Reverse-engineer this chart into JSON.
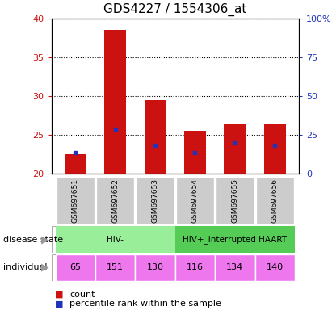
{
  "title": "GDS4227 / 1554306_at",
  "samples": [
    "GSM697651",
    "GSM697652",
    "GSM697653",
    "GSM697654",
    "GSM697655",
    "GSM697656"
  ],
  "bar_bottoms": [
    20,
    20,
    20,
    20,
    20,
    20
  ],
  "bar_heights": [
    2.5,
    18.5,
    9.5,
    5.5,
    6.5,
    6.5
  ],
  "blue_marker_values": [
    22.7,
    25.7,
    23.7,
    22.7,
    24.0,
    23.7
  ],
  "ylim_left": [
    20,
    40
  ],
  "ylim_right": [
    0,
    100
  ],
  "yticks_left": [
    20,
    25,
    30,
    35,
    40
  ],
  "yticks_right": [
    0,
    25,
    50,
    75,
    100
  ],
  "ytick_labels_right": [
    "0",
    "25",
    "50",
    "75",
    "100%"
  ],
  "bar_color": "#cc1111",
  "blue_color": "#2233bb",
  "bar_width": 0.55,
  "disease_state_groups": [
    {
      "label": "HIV-",
      "cols": [
        0,
        1,
        2
      ],
      "color": "#99ee99"
    },
    {
      "label": "HIV+_interrupted HAART",
      "cols": [
        3,
        4,
        5
      ],
      "color": "#55cc55"
    }
  ],
  "individual_labels": [
    "65",
    "151",
    "130",
    "116",
    "134",
    "140"
  ],
  "individual_color": "#ee77ee",
  "row_label_disease": "disease state",
  "row_label_individual": "individual",
  "legend_count_label": "count",
  "legend_pct_label": "percentile rank within the sample",
  "tick_color_left": "#cc1111",
  "tick_color_right": "#2233bb",
  "grid_style": "dotted",
  "grid_color": "#000000",
  "plot_bg_color": "#ffffff",
  "sample_label_bg": "#cccccc",
  "title_fontsize": 11,
  "axis_fontsize": 8,
  "sample_fontsize": 6.5,
  "row_fontsize": 8,
  "legend_fontsize": 8
}
